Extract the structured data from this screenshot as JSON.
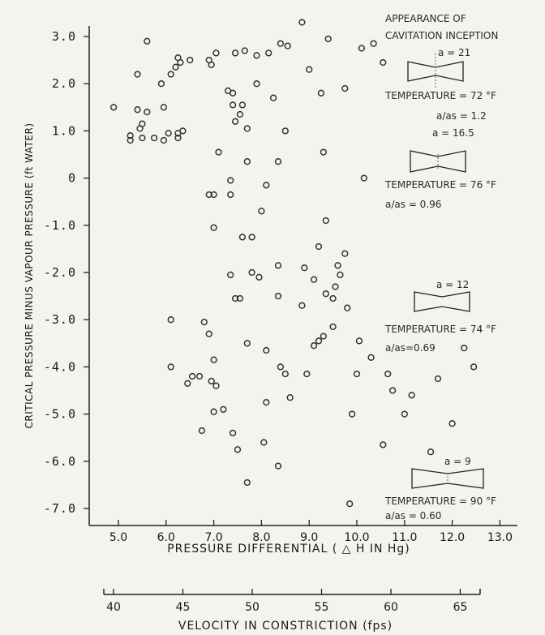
{
  "chart_data": {
    "type": "scatter",
    "title": "",
    "xlabel": "PRESSURE DIFFERENTIAL ( △ H IN Hg)",
    "ylabel": "CRITICAL PRESSURE MINUS VAPOUR PRESSURE (ft WATER)",
    "secondary_xlabel": "VELOCITY IN CONSTRICTION (fps)",
    "xlim": [
      4.6,
      13.2
    ],
    "ylim": [
      -7.5,
      3.3
    ],
    "x_ticks": [
      "5.0",
      "6.0",
      "7.0",
      "8.0",
      "9.0",
      "10.0",
      "11.0",
      "12.0",
      "13.0"
    ],
    "y_ticks": [
      "3.0",
      "2.0",
      "1.0",
      "0",
      "-1.0",
      "-2.0",
      "-3.0",
      "-4.0",
      "-5.0",
      "-6.0",
      "-7.0"
    ],
    "secondary_x_ticks": [
      "40",
      "45",
      "50",
      "55",
      "60",
      "65"
    ],
    "grid": false,
    "annotations": {
      "header": [
        "APPEARANCE OF",
        "CAVITATION INCEPTION"
      ],
      "blocks": [
        {
          "a": "a = 21",
          "temperature": "TEMPERATURE = 72 °F",
          "ratio": "a/as = 1.2"
        },
        {
          "a": "a = 16.5",
          "temperature": "TEMPERATURE = 76 °F",
          "ratio": "a/as = 0.96"
        },
        {
          "a": "a = 12",
          "temperature": "TEMPERATURE = 74 °F",
          "ratio": "a/as=0.69"
        },
        {
          "a": "a = 9",
          "temperature": "TEMPERATURE = 90 °F",
          "ratio": "a/as = 0.60"
        }
      ]
    },
    "series": [
      {
        "points": [
          [
            4.9,
            1.5
          ],
          [
            5.5,
            0.85
          ],
          [
            5.6,
            2.9
          ],
          [
            5.4,
            2.2
          ],
          [
            5.6,
            1.4
          ],
          [
            5.4,
            1.45
          ],
          [
            5.5,
            1.15
          ],
          [
            5.45,
            1.05
          ],
          [
            5.25,
            0.9
          ],
          [
            5.25,
            0.8
          ],
          [
            5.75,
            0.85
          ],
          [
            5.95,
            0.8
          ],
          [
            6.05,
            0.95
          ],
          [
            5.95,
            1.5
          ],
          [
            5.9,
            2.0
          ],
          [
            6.1,
            2.2
          ],
          [
            6.2,
            2.35
          ],
          [
            6.25,
            2.55
          ],
          [
            6.25,
            0.85
          ],
          [
            6.25,
            0.95
          ],
          [
            6.3,
            2.45
          ],
          [
            6.35,
            1.0
          ],
          [
            6.5,
            2.5
          ],
          [
            6.9,
            2.5
          ],
          [
            6.95,
            2.4
          ],
          [
            7.05,
            2.65
          ],
          [
            7.1,
            0.55
          ],
          [
            7.3,
            1.85
          ],
          [
            7.35,
            -0.05
          ],
          [
            7.35,
            -0.35
          ],
          [
            7.4,
            1.8
          ],
          [
            7.4,
            1.55
          ],
          [
            7.45,
            2.65
          ],
          [
            7.45,
            1.2
          ],
          [
            7.55,
            1.35
          ],
          [
            7.6,
            1.55
          ],
          [
            7.65,
            2.7
          ],
          [
            7.7,
            1.05
          ],
          [
            7.7,
            0.35
          ],
          [
            7.9,
            2.6
          ],
          [
            7.9,
            2.0
          ],
          [
            8.15,
            2.65
          ],
          [
            8.0,
            -0.7
          ],
          [
            8.1,
            -0.15
          ],
          [
            8.25,
            1.7
          ],
          [
            8.35,
            0.35
          ],
          [
            8.4,
            2.85
          ],
          [
            8.5,
            1.0
          ],
          [
            8.55,
            2.8
          ],
          [
            8.85,
            3.3
          ],
          [
            9.0,
            2.3
          ],
          [
            9.25,
            1.8
          ],
          [
            9.4,
            2.95
          ],
          [
            9.3,
            0.55
          ],
          [
            9.75,
            1.9
          ],
          [
            10.1,
            2.75
          ],
          [
            10.35,
            2.85
          ],
          [
            10.55,
            2.45
          ],
          [
            10.15,
            0.0
          ],
          [
            6.9,
            -0.35
          ],
          [
            7.0,
            -0.35
          ],
          [
            7.0,
            -1.05
          ],
          [
            7.35,
            -2.05
          ],
          [
            7.45,
            -2.55
          ],
          [
            7.55,
            -2.55
          ],
          [
            7.6,
            -1.25
          ],
          [
            7.8,
            -1.25
          ],
          [
            7.8,
            -2.0
          ],
          [
            7.95,
            -2.1
          ],
          [
            8.35,
            -1.85
          ],
          [
            8.35,
            -2.5
          ],
          [
            8.85,
            -2.7
          ],
          [
            8.9,
            -1.9
          ],
          [
            9.1,
            -2.15
          ],
          [
            9.2,
            -1.45
          ],
          [
            9.35,
            -0.9
          ],
          [
            9.35,
            -2.45
          ],
          [
            9.5,
            -2.55
          ],
          [
            9.55,
            -2.3
          ],
          [
            9.6,
            -1.85
          ],
          [
            9.65,
            -2.05
          ],
          [
            9.75,
            -1.6
          ],
          [
            9.8,
            -2.75
          ],
          [
            6.1,
            -3.0
          ],
          [
            6.1,
            -4.0
          ],
          [
            6.45,
            -4.35
          ],
          [
            6.55,
            -4.2
          ],
          [
            6.7,
            -4.2
          ],
          [
            6.75,
            -5.35
          ],
          [
            6.8,
            -3.05
          ],
          [
            6.9,
            -3.3
          ],
          [
            6.95,
            -4.3
          ],
          [
            7.0,
            -3.85
          ],
          [
            7.0,
            -4.95
          ],
          [
            7.05,
            -4.4
          ],
          [
            7.2,
            -4.9
          ],
          [
            7.4,
            -5.4
          ],
          [
            7.5,
            -5.75
          ],
          [
            7.7,
            -6.45
          ],
          [
            7.7,
            -3.5
          ],
          [
            8.05,
            -5.6
          ],
          [
            8.1,
            -4.75
          ],
          [
            8.1,
            -3.65
          ],
          [
            8.35,
            -6.1
          ],
          [
            8.4,
            -4.0
          ],
          [
            8.5,
            -4.15
          ],
          [
            8.6,
            -4.65
          ],
          [
            8.95,
            -4.15
          ],
          [
            9.1,
            -3.55
          ],
          [
            9.2,
            -3.45
          ],
          [
            9.3,
            -3.35
          ],
          [
            9.5,
            -3.15
          ],
          [
            9.85,
            -6.9
          ],
          [
            9.9,
            -5.0
          ],
          [
            10.0,
            -4.15
          ],
          [
            10.05,
            -3.45
          ],
          [
            10.3,
            -3.8
          ],
          [
            10.55,
            -5.65
          ],
          [
            10.65,
            -4.15
          ],
          [
            10.75,
            -4.5
          ],
          [
            11.0,
            -5.0
          ],
          [
            11.15,
            -4.6
          ],
          [
            11.55,
            -5.8
          ],
          [
            11.7,
            -4.25
          ],
          [
            12.0,
            -5.2
          ],
          [
            12.25,
            -3.6
          ],
          [
            12.45,
            -4.0
          ]
        ]
      }
    ]
  }
}
